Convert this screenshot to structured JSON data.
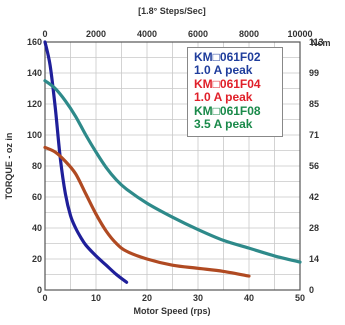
{
  "chart_data": {
    "type": "line",
    "title": "",
    "xlabel": "Motor Speed (rps)",
    "ylabel": "TORQUE - oz in",
    "top_axis_label": "[1.8° Steps/Sec]",
    "right_axis_label": "Ncm",
    "xlim": [
      0,
      50
    ],
    "ylim": [
      0,
      160
    ],
    "x_ticks": [
      "0",
      "10",
      "20",
      "30",
      "40",
      "50"
    ],
    "y_ticks": [
      "0",
      "20",
      "40",
      "60",
      "80",
      "100",
      "120",
      "140",
      "160"
    ],
    "top_ticks": [
      "0",
      "2000",
      "4000",
      "6000",
      "8000",
      "10000"
    ],
    "right_ticks": [
      {
        "label": "113",
        "y": 160
      },
      {
        "label": "99",
        "y": 140
      },
      {
        "label": "85",
        "y": 120
      },
      {
        "label": "71",
        "y": 100
      },
      {
        "label": "56",
        "y": 80
      },
      {
        "label": "42",
        "y": 60
      },
      {
        "label": "28",
        "y": 40
      },
      {
        "label": "14",
        "y": 20
      },
      {
        "label": "0",
        "y": 0
      }
    ],
    "grid": true,
    "legend": [
      {
        "line1": "KM□061F02",
        "line2": "1.0 A peak",
        "color": "#1f3d9c"
      },
      {
        "line1": "KM□061F04",
        "line2": "1.0 A peak",
        "color": "#e0202a"
      },
      {
        "line1": "KM□061F08",
        "line2": "3.5 A peak",
        "color": "#1a8a4a"
      }
    ],
    "legend_position": "top-right",
    "series": [
      {
        "color": "#1f1f9a",
        "points": [
          [
            0,
            160
          ],
          [
            1,
            145
          ],
          [
            2,
            118
          ],
          [
            3,
            85
          ],
          [
            4,
            62
          ],
          [
            5,
            48
          ],
          [
            6,
            40
          ],
          [
            7,
            34
          ],
          [
            8,
            29
          ],
          [
            10,
            22
          ],
          [
            12,
            16
          ],
          [
            14,
            10
          ],
          [
            16,
            5
          ]
        ]
      },
      {
        "color": "#b04a22",
        "points": [
          [
            0,
            92
          ],
          [
            2,
            89
          ],
          [
            4,
            83
          ],
          [
            6,
            75
          ],
          [
            8,
            62
          ],
          [
            10,
            49
          ],
          [
            12,
            38
          ],
          [
            14,
            30
          ],
          [
            16,
            25
          ],
          [
            20,
            20
          ],
          [
            25,
            16
          ],
          [
            30,
            14
          ],
          [
            35,
            12
          ],
          [
            40,
            9
          ]
        ]
      },
      {
        "color": "#2e8a8a",
        "points": [
          [
            0,
            135
          ],
          [
            2,
            130
          ],
          [
            4,
            122
          ],
          [
            6,
            112
          ],
          [
            8,
            100
          ],
          [
            10,
            89
          ],
          [
            12,
            79
          ],
          [
            14,
            71
          ],
          [
            16,
            65
          ],
          [
            20,
            56
          ],
          [
            25,
            47
          ],
          [
            30,
            39
          ],
          [
            35,
            32
          ],
          [
            40,
            27
          ],
          [
            45,
            22
          ],
          [
            50,
            18
          ]
        ]
      }
    ]
  }
}
